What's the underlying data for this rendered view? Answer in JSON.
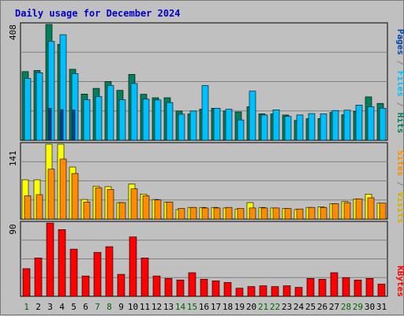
{
  "chart_data": {
    "type": "bar",
    "title": "Daily usage for December 2024",
    "categories": [
      "1",
      "2",
      "3",
      "4",
      "5",
      "6",
      "7",
      "8",
      "9",
      "10",
      "11",
      "12",
      "13",
      "14",
      "15",
      "16",
      "17",
      "18",
      "19",
      "20",
      "21",
      "22",
      "23",
      "24",
      "25",
      "26",
      "27",
      "28",
      "29",
      "30",
      "31"
    ],
    "weekend_days": [
      "1",
      "7",
      "8",
      "14",
      "15",
      "21",
      "22",
      "28",
      "29"
    ],
    "panels": [
      {
        "id": "pages-files-hits",
        "ymax_label": "408",
        "ylim": [
          0,
          408
        ],
        "legend": [
          "Pages",
          "Files",
          "Hits"
        ],
        "series": [
          {
            "name": "Hits",
            "color": "#00805c",
            "values": [
              242,
              246,
              408,
              338,
              250,
              163,
              183,
              207,
              176,
              232,
              162,
              150,
              150,
              103,
              93,
              110,
              113,
              103,
              100,
              118,
              93,
              93,
              89,
              70,
              76,
              77,
              98,
              90,
              102,
              153,
              130
            ]
          },
          {
            "name": "Files",
            "color": "#00bfff",
            "values": [
              218,
              238,
              348,
              372,
              235,
              143,
              154,
              193,
              143,
              200,
              145,
              142,
              133,
              92,
              103,
              193,
              113,
              109,
              72,
              173,
              89,
              107,
              84,
              89,
              94,
              93,
              105,
              106,
              124,
              118,
              113
            ]
          },
          {
            "name": "Pages",
            "color": "#0047ab",
            "values": [
              0,
              0,
              113,
              108,
              107,
              0,
              0,
              0,
              0,
              0,
              0,
              0,
              0,
              0,
              0,
              0,
              0,
              0,
              0,
              0,
              0,
              0,
              0,
              0,
              0,
              0,
              0,
              0,
              0,
              0,
              0
            ]
          }
        ]
      },
      {
        "id": "sites-visits",
        "ymax_label": "141",
        "ylim": [
          0,
          141
        ],
        "legend": [
          "Sites",
          "Visits"
        ],
        "series": [
          {
            "name": "Visits",
            "color": "#ffff00",
            "values": [
              74,
              74,
              141,
              141,
              98,
              37,
              62,
              61,
              31,
              66,
              47,
              37,
              32,
              18,
              22,
              22,
              22,
              21,
              19,
              31,
              22,
              21,
              20,
              18,
              22,
              23,
              29,
              33,
              38,
              47,
              30
            ]
          },
          {
            "name": "Sites",
            "color": "#ff8c00",
            "values": [
              44,
              46,
              94,
              113,
              86,
              32,
              59,
              56,
              31,
              57,
              44,
              36,
              32,
              20,
              22,
              21,
              21,
              22,
              20,
              21,
              21,
              21,
              20,
              19,
              22,
              22,
              29,
              31,
              38,
              40,
              30
            ]
          }
        ]
      },
      {
        "id": "kbytes",
        "ymax_label": "90",
        "ylim": [
          0,
          90
        ],
        "legend": [
          "KBytes"
        ],
        "series": [
          {
            "name": "KBytes",
            "color": "#ff0000",
            "values": [
              34,
              47,
              90,
              82,
              58,
              25,
              54,
              61,
              27,
              73,
              47,
              25,
              22,
              20,
              29,
              21,
              19,
              17,
              10,
              12,
              13,
              12,
              13,
              11,
              22,
              21,
              29,
              23,
              20,
              22,
              15
            ]
          }
        ]
      }
    ],
    "colors": {
      "plot_bg": "#c0c0c0",
      "grid": "#808080",
      "title": "#0000cc",
      "weekday_label": "#000000",
      "weekend_label": "#006400",
      "legend_pages": "#0047ab",
      "legend_files": "#00bfff",
      "legend_hits": "#00805c",
      "legend_sites": "#ff8c00",
      "legend_visits": "#d0b000",
      "legend_kbytes": "#ff0000",
      "separator": "#808080"
    }
  }
}
